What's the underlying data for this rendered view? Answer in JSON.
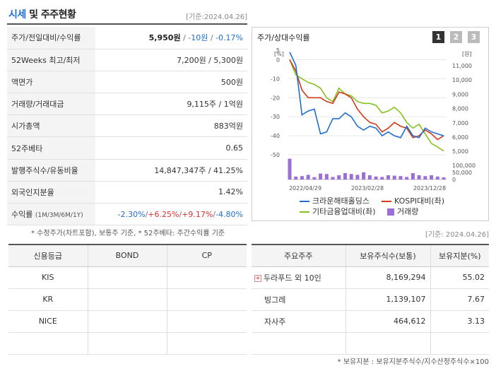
{
  "header": {
    "title_accent": "시세",
    "title_rest": " 및 주주현황",
    "date": "[기준:2024.04.26]"
  },
  "price_rows": [
    {
      "label": "주가/전일대비/수익률",
      "v1": "5,950원",
      "sep1": " / ",
      "v2": "-10원",
      "sep2": " / ",
      "v3": "-0.17%"
    },
    {
      "label": "52Weeks 최고/최저",
      "value": "7,200원 / 5,300원"
    },
    {
      "label": "액면가",
      "value": "500원"
    },
    {
      "label": "거래량/거래대금",
      "value": "9,115주 / 1억원"
    },
    {
      "label": "시가총액",
      "value": "883억원"
    },
    {
      "label": "52주베타",
      "value": "0.65"
    },
    {
      "label": "발행주식수/유동비율",
      "value": "14,847,347주 / 41.25%"
    },
    {
      "label": "외국인지분율",
      "value": "1.42%"
    },
    {
      "label": "수익률",
      "label_sub": "(1M/3M/6M/1Y)",
      "r1": "-2.30%",
      "r2": "+6.25%",
      "r3": "+9.17%",
      "r4": "-4.80%",
      "sep": "/"
    }
  ],
  "note1": "* 수정주가(차트포함), 보통주 기준, * 52주베타: 주간수익률 기준",
  "chart_panel": {
    "title": "주가/상대수익률",
    "pages": [
      "1",
      "2",
      "3"
    ]
  },
  "chart_data": {
    "type": "line",
    "left_unit": "[%]",
    "right_unit": "[원]",
    "left_ticks": [
      "0",
      "-10",
      "-20",
      "-30",
      "-40",
      "-50"
    ],
    "left_ticks_top": "5",
    "right_ticks": [
      "11,000",
      "10,000",
      "9,000",
      "8,000",
      "7,000",
      "6,000",
      "5,000"
    ],
    "volume_ticks": [
      "100,000",
      "50,000",
      "0"
    ],
    "x_labels": [
      "2022/04/29",
      "2023/02/28",
      "2023/12/28"
    ],
    "series": [
      {
        "name": "크라운해태홀딩스",
        "color": "#1f6fd1",
        "values": [
          4,
          -3,
          -29,
          -27,
          -26,
          -39,
          -38,
          -31,
          -31,
          -28,
          -30,
          -35,
          -37,
          -35,
          -36,
          -40,
          -38,
          -40,
          -41,
          -35,
          -40,
          -41,
          -36,
          -38,
          -39,
          -40
        ]
      },
      {
        "name": "KOSPI대비(좌)",
        "color": "#d23a1a",
        "values": [
          0,
          -6,
          -16,
          -20,
          -20,
          -20,
          -22,
          -23,
          -17,
          -18,
          -20,
          -26,
          -30,
          -33,
          -34,
          -38,
          -36,
          -33,
          -35,
          -36,
          -41,
          -40,
          -37,
          -39,
          -42,
          -40
        ]
      },
      {
        "name": "기타금융업대비(좌)",
        "color": "#86c21e",
        "values": [
          0,
          -8,
          -10,
          -12,
          -13,
          -15,
          -20,
          -22,
          -15,
          -18,
          -19,
          -22,
          -23,
          -23,
          -24,
          -28,
          -27,
          -25,
          -28,
          -33,
          -36,
          -34,
          -39,
          -44,
          -46,
          -48
        ]
      },
      {
        "name": "거래량",
        "color": "#9b6fd6",
        "values": [
          98000,
          14000,
          16000,
          22000,
          11000,
          28000,
          26000,
          12000,
          20000,
          30000,
          26000,
          22000,
          34000,
          20000,
          14000,
          12000,
          20000,
          18000,
          16000,
          12000,
          30000,
          20000,
          16000,
          20000,
          14000,
          10000
        ]
      }
    ],
    "ylim": [
      -50,
      5
    ],
    "grid": true
  },
  "date2": "[기준: 2024.04.26]",
  "credit": {
    "headers": [
      "신용등급",
      "BOND",
      "CP"
    ],
    "rows": [
      [
        "KIS",
        "",
        ""
      ],
      [
        "KR",
        "",
        ""
      ],
      [
        "NICE",
        "",
        ""
      ],
      [
        "",
        "",
        ""
      ]
    ]
  },
  "holders": {
    "headers": [
      "주요주주",
      "보유주식수(보통)",
      "보유지분(%)"
    ],
    "rows": [
      {
        "name": "두라푸드 외 10인",
        "shares": "8,169,294",
        "pct": "55.02",
        "plus": "+"
      },
      {
        "name": "빙그레",
        "shares": "1,139,107",
        "pct": "7.67"
      },
      {
        "name": "자사주",
        "shares": "464,612",
        "pct": "3.13"
      }
    ]
  },
  "note2": "* 보유지분 : 보유지분주식수/지수산정주식수×100"
}
